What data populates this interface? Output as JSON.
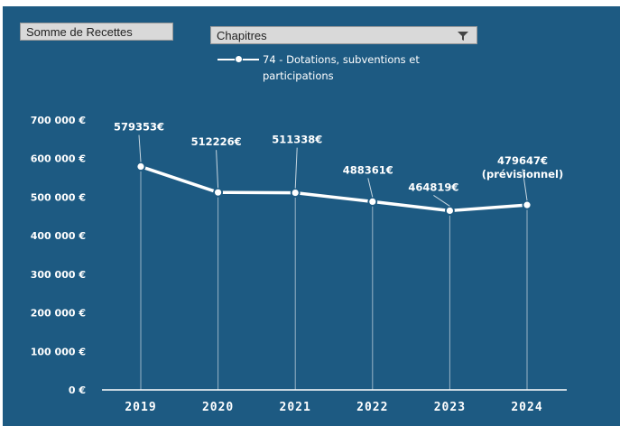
{
  "header": {
    "sum_label": "Somme de Recettes",
    "filter_label": "Chapitres"
  },
  "colors": {
    "background": "#1d5a82",
    "line": "#ffffff"
  },
  "chart_data": {
    "type": "line",
    "categories": [
      "2019",
      "2020",
      "2021",
      "2022",
      "2023",
      "2024"
    ],
    "series": [
      {
        "name": "74 - Dotations, subventions et participations",
        "values": [
          579353,
          512226,
          511338,
          488361,
          464819,
          479647
        ]
      }
    ],
    "data_labels": [
      "579353€",
      "512226€",
      "511338€",
      "488361€",
      "464819€",
      "479647€"
    ],
    "last_label_note": "(prévisionnel)",
    "y_ticks": [
      "0 €",
      "100 000 €",
      "200 000 €",
      "300 000 €",
      "400 000 €",
      "500 000 €",
      "600 000 €",
      "700 000 €"
    ],
    "ylim": [
      0,
      700000
    ],
    "grid": false,
    "legend": "top"
  }
}
